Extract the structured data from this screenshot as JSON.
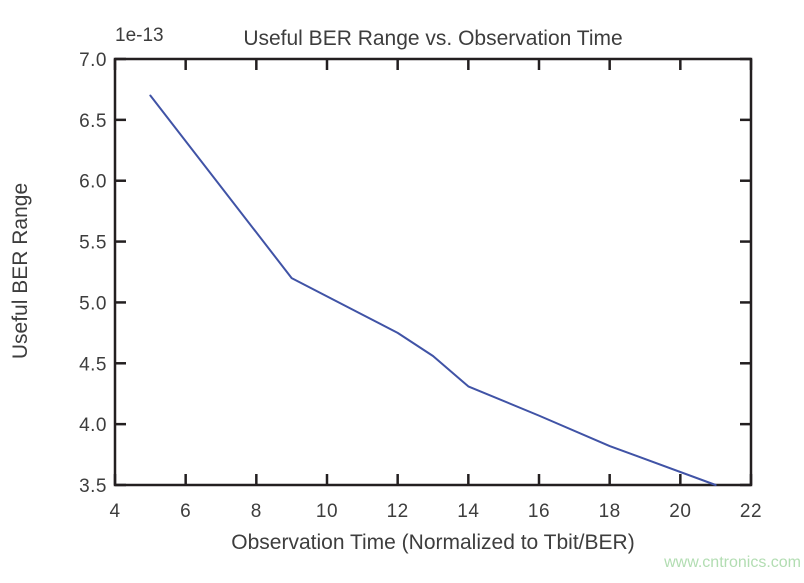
{
  "chart": {
    "title": "Useful BER Range vs. Observation Time",
    "xlabel": "Observation Time (Normalized to Tbit/BER)",
    "ylabel": "Useful BER Range",
    "offset_label": "1e-13"
  },
  "watermark": {
    "text": "www.cntronics.com"
  },
  "colors": {
    "line": "#4053a6",
    "axis": "#231f20",
    "text": "#3d3d3d",
    "watermark": "#b2ddb2",
    "background": "#ffffff"
  },
  "chart_data": {
    "type": "line",
    "title": "Useful BER Range vs. Observation Time",
    "xlabel": "Observation Time (Normalized to Tbit/BER)",
    "ylabel": "Useful BER Range",
    "y_scale_offset": "1e-13",
    "x": [
      5,
      9,
      10,
      11,
      12,
      13,
      14,
      16,
      18,
      21
    ],
    "y": [
      6.7,
      5.2,
      5.05,
      4.9,
      4.75,
      4.56,
      4.31,
      4.07,
      3.82,
      3.5
    ],
    "y_units_note": "values are multiples of 1e-13",
    "xlim": [
      4,
      22
    ],
    "ylim": [
      3.5,
      7.0
    ],
    "x_ticks": [
      4,
      6,
      8,
      10,
      12,
      14,
      16,
      18,
      20,
      22
    ],
    "y_ticks": [
      3.5,
      4.0,
      4.5,
      5.0,
      5.5,
      6.0,
      6.5,
      7.0
    ],
    "grid": false,
    "legend": null,
    "line_color": "#4053a6",
    "ticks_inward_all_sides": true
  }
}
